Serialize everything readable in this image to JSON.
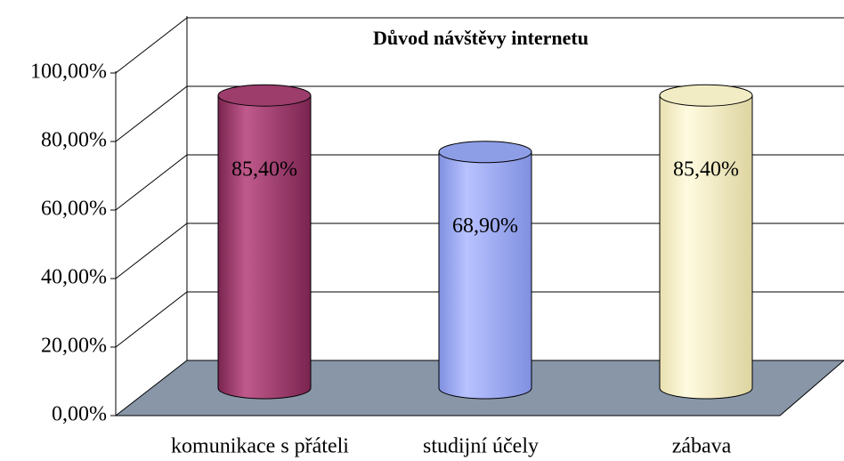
{
  "chart_data": {
    "type": "bar",
    "title": "Důvod návštěvy internetu",
    "categories": [
      "komunikace s přáteli",
      "studijní účely",
      "zábava"
    ],
    "values": [
      85.4,
      68.9,
      85.4
    ],
    "value_labels": [
      "85,40%",
      "68,90%",
      "85,40%"
    ],
    "colors": [
      "#9c3d6c",
      "#8e9ee6",
      "#f2ecc4"
    ],
    "ylim": [
      0,
      100
    ],
    "yticks": [
      {
        "value": 0,
        "label": "0,00%"
      },
      {
        "value": 20,
        "label": "20,00%"
      },
      {
        "value": 40,
        "label": "40,00%"
      },
      {
        "value": 60,
        "label": "60,00%"
      },
      {
        "value": 80,
        "label": "80,00%"
      },
      {
        "value": 100,
        "label": "100,00%"
      }
    ],
    "grid": true
  }
}
